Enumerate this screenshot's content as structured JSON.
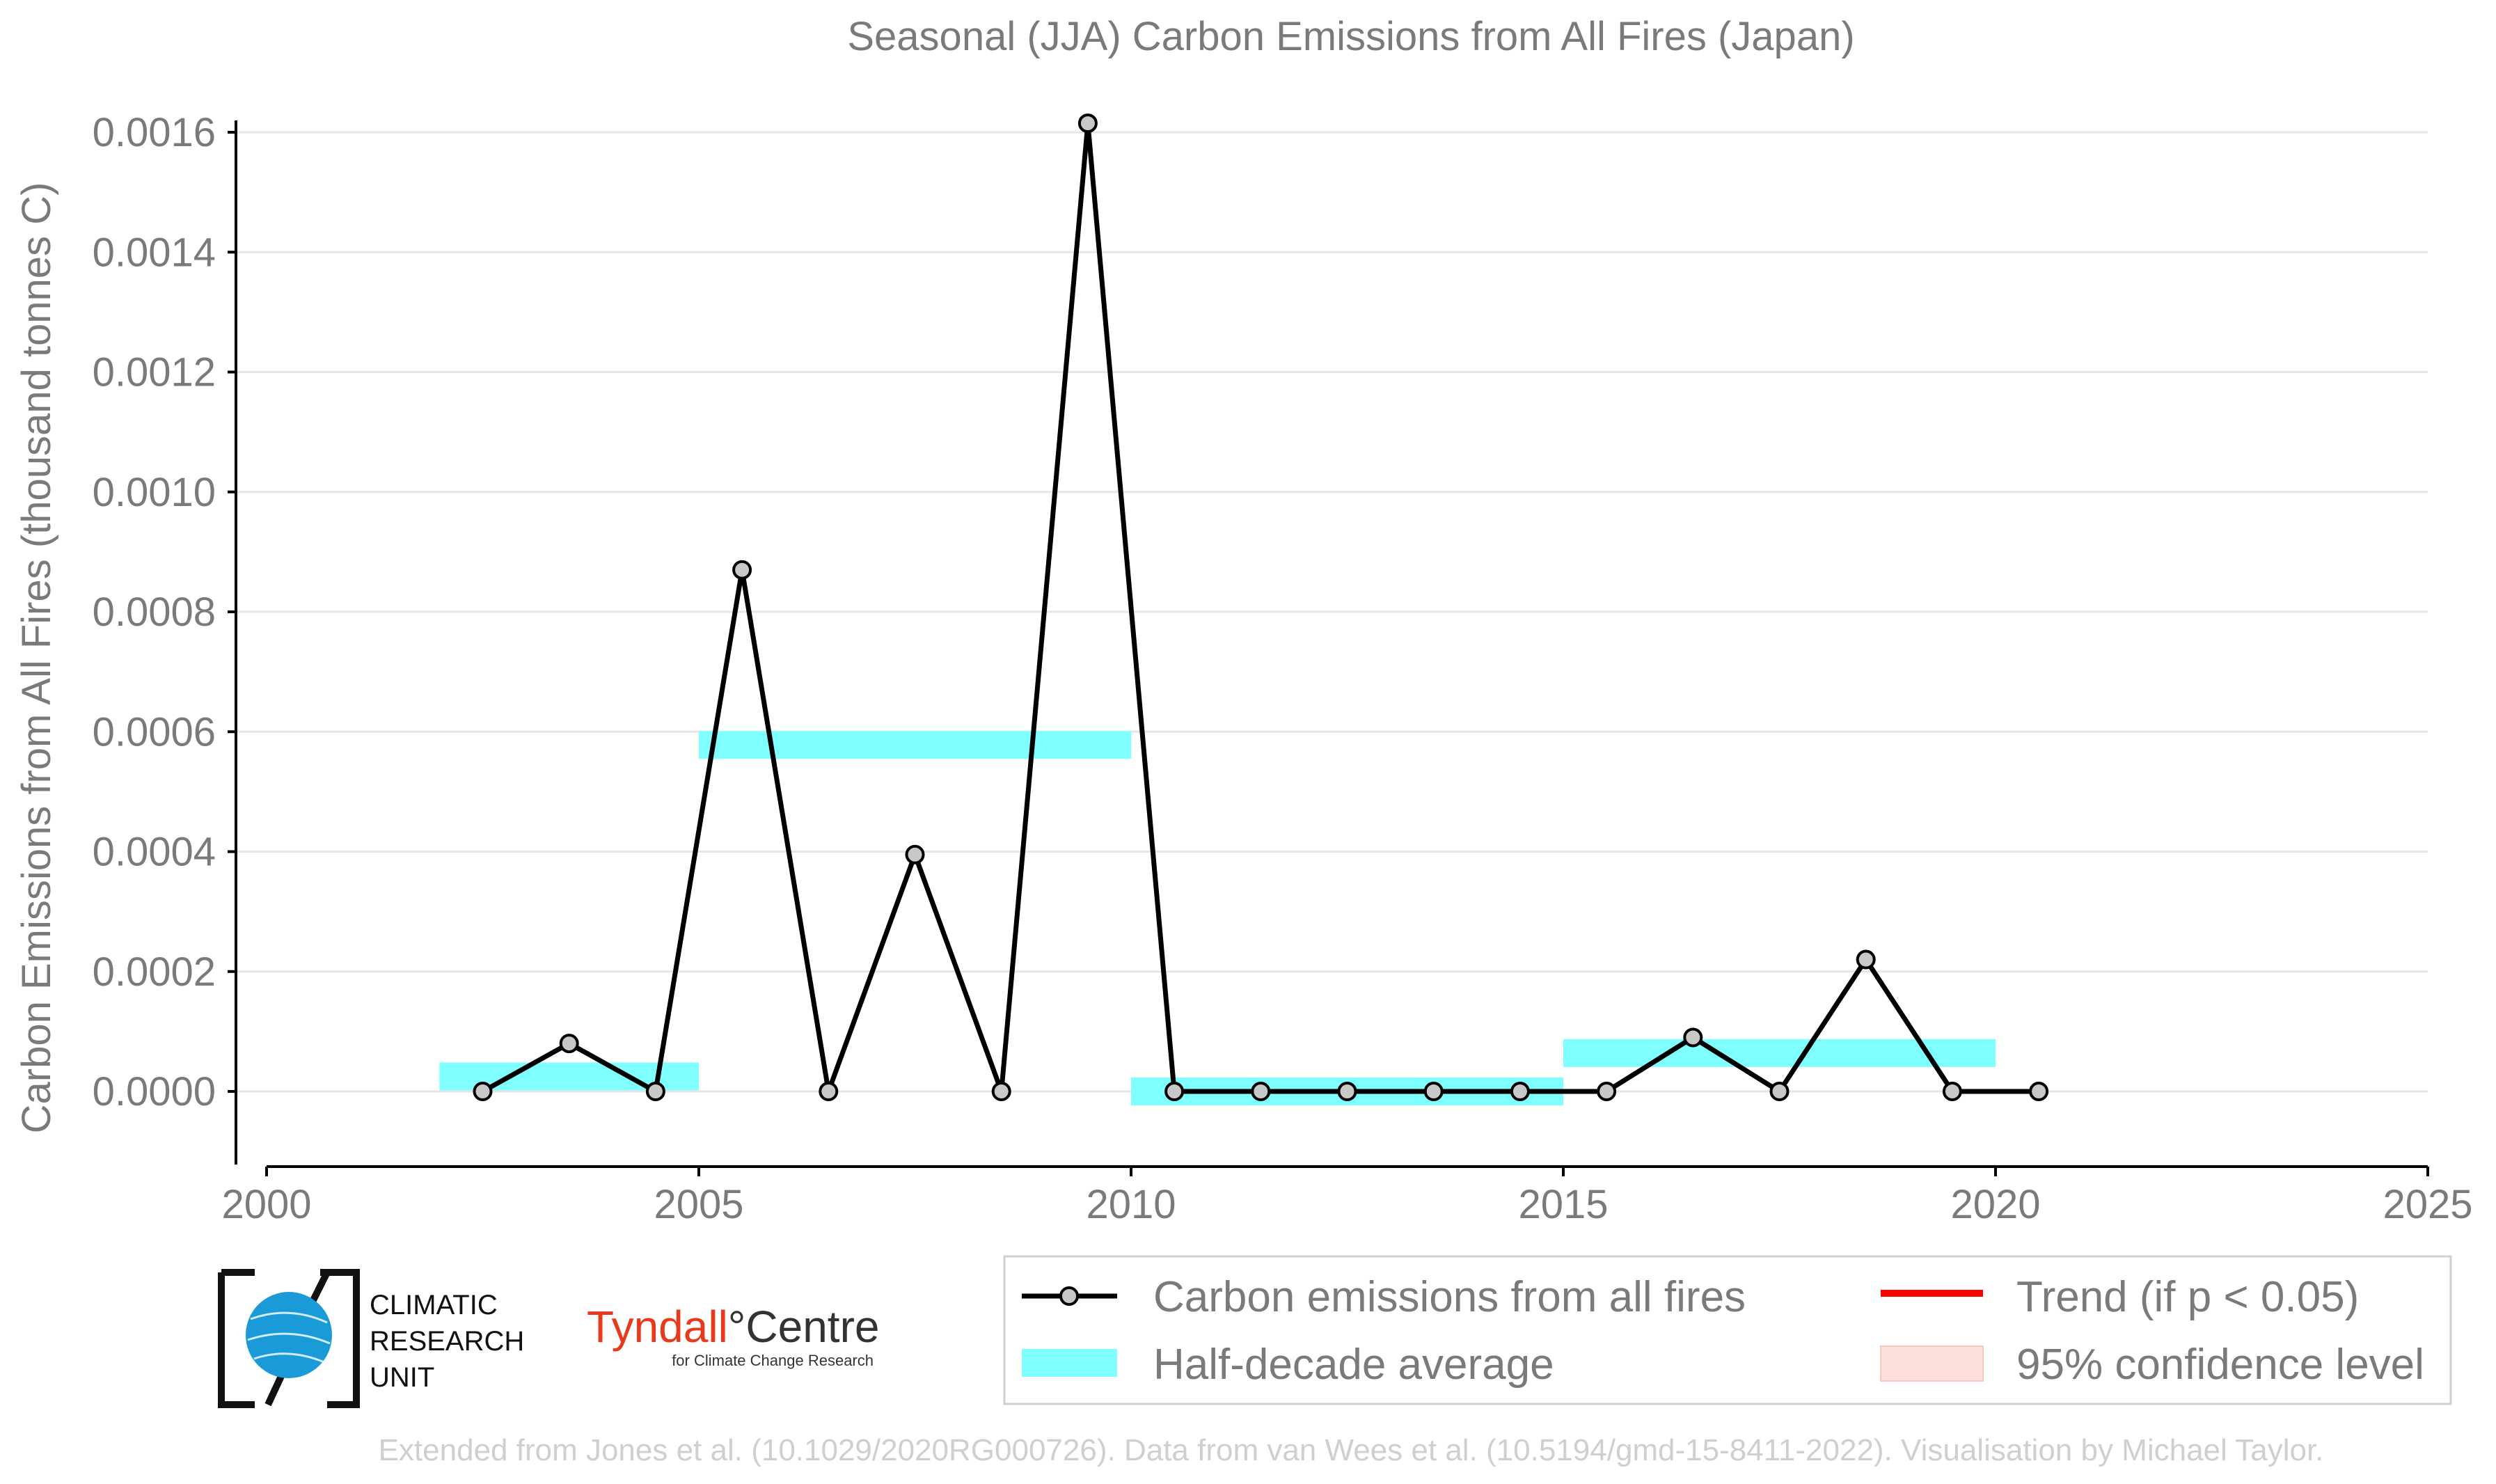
{
  "chart_data": {
    "type": "line",
    "title": "Seasonal (JJA) Carbon Emissions from All Fires (Japan)",
    "xlabel": "",
    "ylabel": "Carbon Emissions from All Fires (thousand tonnes C)",
    "xlim": [
      2000,
      2025
    ],
    "ylim": [
      -0.000128,
      0.00162
    ],
    "x_ticks": [
      2000,
      2005,
      2010,
      2015,
      2020,
      2025
    ],
    "y_ticks": [
      0.0,
      0.0002,
      0.0004,
      0.0006,
      0.0008,
      0.001,
      0.0012,
      0.0014,
      0.0016
    ],
    "y_tick_labels": [
      "0.0000",
      "0.0002",
      "0.0004",
      "0.0006",
      "0.0008",
      "0.0010",
      "0.0012",
      "0.0014",
      "0.0016"
    ],
    "grid": true,
    "legend_position": "bottom-right",
    "series": [
      {
        "name": "Carbon emissions from all fires",
        "kind": "line-marker",
        "color": "#000000",
        "marker_fill": "#c8c8c8",
        "x": [
          2002.5,
          2003.5,
          2004.5,
          2005.5,
          2006.5,
          2007.5,
          2008.5,
          2009.5,
          2010.5,
          2011.5,
          2012.5,
          2013.5,
          2014.5,
          2015.5,
          2016.5,
          2017.5,
          2018.5,
          2019.5,
          2020.5
        ],
        "y": [
          0.0,
          8e-05,
          0.0,
          0.00087,
          0.0,
          0.000395,
          0.0,
          0.001615,
          0.0,
          0.0,
          0.0,
          0.0,
          0.0,
          0.0,
          9e-05,
          0.0,
          0.00022,
          0.0,
          0.0
        ]
      },
      {
        "name": "Half-decade average",
        "kind": "bars",
        "color": "#7fffff",
        "segments": [
          {
            "x0": 2002,
            "x1": 2005,
            "y": 2.5e-05
          },
          {
            "x0": 2005,
            "x1": 2010,
            "y": 0.000578
          },
          {
            "x0": 2010,
            "x1": 2015,
            "y": 0.0
          },
          {
            "x0": 2015,
            "x1": 2020,
            "y": 6.4e-05
          }
        ]
      },
      {
        "name": "Trend (if p < 0.05)",
        "kind": "legend-only",
        "color": "#ff0000"
      },
      {
        "name": "95% confidence level",
        "kind": "legend-only",
        "color": "#fde0dd"
      }
    ],
    "footer": "Extended from Jones et al. (10.1029/2020RG000726). Data from van Wees et al. (10.5194/gmd-15-8411-2022). Visualisation by Michael Taylor."
  },
  "logos": {
    "cru_lines": [
      "CLIMATIC",
      "RESEARCH",
      "UNIT"
    ],
    "tyndall_main": "Tyndall°Centre",
    "tyndall_sub": "for Climate Change Research",
    "tyndall_colors": {
      "tyndall": "#e8391d",
      "centre": "#333333"
    },
    "cru_globe_color": "#1a9bd7"
  },
  "colors": {
    "text_gray": "#7a7a7a",
    "grid": "#e6e6e6",
    "footer": "#cfcfcf"
  }
}
